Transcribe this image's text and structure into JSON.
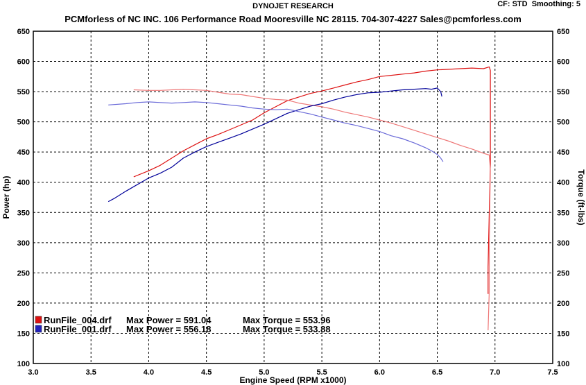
{
  "header": {
    "brand": "DYNOJET RESEARCH",
    "company": "PCMforless of NC INC. 106 Performance Road Mooresville NC 28115. 704-307-4227 Sales@pcmforless.com",
    "cf": "CF: STD",
    "smoothing": "Smoothing: 5"
  },
  "colors": {
    "run4": "#dd1111",
    "run4_light": "#ee7777",
    "run1": "#000099",
    "run1_light": "#6a6ad8",
    "grid": "#000000",
    "bg": "#ffffff"
  },
  "chart_data": {
    "type": "line",
    "xlabel": "Engine Speed (RPM x1000)",
    "ylabel_left": "Power (hp)",
    "ylabel_right": "Torque (ft-lbs)",
    "xlim": [
      3.0,
      7.5
    ],
    "ylim": [
      100,
      650
    ],
    "x_ticks": [
      "3.0",
      "3.5",
      "4.0",
      "4.5",
      "5.0",
      "5.5",
      "6.0",
      "6.5",
      "7.0",
      "7.5"
    ],
    "y_ticks": [
      "100",
      "150",
      "200",
      "250",
      "300",
      "350",
      "400",
      "450",
      "500",
      "550",
      "600",
      "650"
    ],
    "grid": true,
    "series": [
      {
        "name": "RunFile_004.drf",
        "measure": "power",
        "color": "#dd1111",
        "points": [
          [
            3.87,
            409
          ],
          [
            4.0,
            419
          ],
          [
            4.1,
            428
          ],
          [
            4.2,
            440
          ],
          [
            4.3,
            452
          ],
          [
            4.4,
            462
          ],
          [
            4.5,
            472
          ],
          [
            4.6,
            479
          ],
          [
            4.7,
            487
          ],
          [
            4.8,
            495
          ],
          [
            4.9,
            503
          ],
          [
            5.0,
            515
          ],
          [
            5.1,
            525
          ],
          [
            5.2,
            535
          ],
          [
            5.3,
            541
          ],
          [
            5.4,
            547
          ],
          [
            5.5,
            551
          ],
          [
            5.6,
            556
          ],
          [
            5.7,
            561
          ],
          [
            5.8,
            566
          ],
          [
            5.9,
            570
          ],
          [
            6.0,
            575
          ],
          [
            6.1,
            577
          ],
          [
            6.2,
            579
          ],
          [
            6.3,
            581
          ],
          [
            6.4,
            584
          ],
          [
            6.5,
            586
          ],
          [
            6.6,
            587
          ],
          [
            6.7,
            588
          ],
          [
            6.8,
            589
          ],
          [
            6.9,
            588
          ],
          [
            6.95,
            591
          ],
          [
            6.96,
            585
          ],
          [
            6.96,
            430
          ],
          [
            6.95,
            350
          ],
          [
            6.94,
            260
          ],
          [
            6.94,
            215
          ]
        ]
      },
      {
        "name": "RunFile_004.drf",
        "measure": "torque",
        "color": "#ee7777",
        "points": [
          [
            3.87,
            553
          ],
          [
            4.0,
            552
          ],
          [
            4.1,
            552
          ],
          [
            4.2,
            553
          ],
          [
            4.3,
            554
          ],
          [
            4.4,
            553
          ],
          [
            4.5,
            552
          ],
          [
            4.6,
            549
          ],
          [
            4.7,
            546
          ],
          [
            4.8,
            545
          ],
          [
            4.9,
            542
          ],
          [
            5.0,
            539
          ],
          [
            5.1,
            537
          ],
          [
            5.2,
            536
          ],
          [
            5.3,
            531
          ],
          [
            5.4,
            528
          ],
          [
            5.5,
            525
          ],
          [
            5.6,
            521
          ],
          [
            5.7,
            516
          ],
          [
            5.8,
            512
          ],
          [
            5.9,
            508
          ],
          [
            6.0,
            503
          ],
          [
            6.1,
            498
          ],
          [
            6.2,
            492
          ],
          [
            6.3,
            486
          ],
          [
            6.4,
            480
          ],
          [
            6.5,
            474
          ],
          [
            6.6,
            468
          ],
          [
            6.7,
            461
          ],
          [
            6.8,
            455
          ],
          [
            6.9,
            448
          ],
          [
            6.95,
            445
          ],
          [
            6.96,
            420
          ],
          [
            6.95,
            300
          ],
          [
            6.95,
            220
          ],
          [
            6.94,
            155
          ]
        ]
      },
      {
        "name": "RunFile_001.drf",
        "measure": "power",
        "color": "#000099",
        "points": [
          [
            3.65,
            368
          ],
          [
            3.7,
            373
          ],
          [
            3.8,
            385
          ],
          [
            3.9,
            396
          ],
          [
            4.0,
            407
          ],
          [
            4.1,
            415
          ],
          [
            4.2,
            425
          ],
          [
            4.3,
            440
          ],
          [
            4.4,
            450
          ],
          [
            4.5,
            459
          ],
          [
            4.6,
            466
          ],
          [
            4.7,
            473
          ],
          [
            4.8,
            480
          ],
          [
            4.9,
            488
          ],
          [
            5.0,
            496
          ],
          [
            5.1,
            505
          ],
          [
            5.2,
            514
          ],
          [
            5.3,
            520
          ],
          [
            5.4,
            526
          ],
          [
            5.5,
            530
          ],
          [
            5.6,
            536
          ],
          [
            5.7,
            541
          ],
          [
            5.8,
            545
          ],
          [
            5.9,
            548
          ],
          [
            6.0,
            549
          ],
          [
            6.1,
            551
          ],
          [
            6.2,
            553
          ],
          [
            6.3,
            554
          ],
          [
            6.4,
            555
          ],
          [
            6.45,
            554
          ],
          [
            6.5,
            556
          ],
          [
            6.53,
            550
          ],
          [
            6.54,
            542
          ]
        ]
      },
      {
        "name": "RunFile_001.drf",
        "measure": "torque",
        "color": "#6a6ad8",
        "points": [
          [
            3.65,
            528
          ],
          [
            3.8,
            530
          ],
          [
            3.9,
            532
          ],
          [
            4.0,
            533
          ],
          [
            4.1,
            532
          ],
          [
            4.2,
            531
          ],
          [
            4.3,
            532
          ],
          [
            4.4,
            533
          ],
          [
            4.5,
            532
          ],
          [
            4.6,
            530
          ],
          [
            4.7,
            528
          ],
          [
            4.8,
            526
          ],
          [
            4.9,
            523
          ],
          [
            5.0,
            521
          ],
          [
            5.1,
            520
          ],
          [
            5.2,
            521
          ],
          [
            5.3,
            517
          ],
          [
            5.4,
            513
          ],
          [
            5.5,
            508
          ],
          [
            5.6,
            503
          ],
          [
            5.7,
            498
          ],
          [
            5.8,
            494
          ],
          [
            5.9,
            489
          ],
          [
            6.0,
            484
          ],
          [
            6.1,
            477
          ],
          [
            6.2,
            472
          ],
          [
            6.3,
            465
          ],
          [
            6.4,
            457
          ],
          [
            6.45,
            452
          ],
          [
            6.5,
            446
          ],
          [
            6.53,
            440
          ],
          [
            6.55,
            434
          ]
        ]
      }
    ],
    "legend": [
      {
        "color": "#dd1111",
        "file": "RunFile_004.drf",
        "max_power": "Max Power = 591.04",
        "max_torque": "Max Torque = 553.96"
      },
      {
        "color": "#2222bb",
        "file": "RunFile_001.drf",
        "max_power": "Max Power = 556.18",
        "max_torque": "Max Torque = 533.88"
      }
    ]
  }
}
